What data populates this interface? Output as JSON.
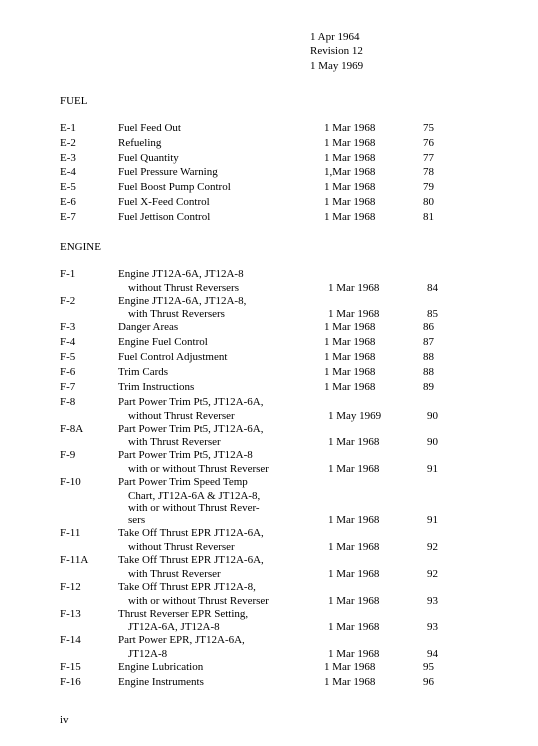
{
  "header": {
    "line1": "1 Apr 1964",
    "line2": "Revision 12",
    "line3": "1 May 1969"
  },
  "sections": [
    {
      "title": "FUEL",
      "rows": [
        {
          "code": "E-1",
          "title": "Fuel Feed Out",
          "date": "1 Mar 1968",
          "page": "75"
        },
        {
          "code": "E-2",
          "title": "Refueling",
          "date": "1 Mar 1968",
          "page": "76"
        },
        {
          "code": "E-3",
          "title": "Fuel Quantity",
          "date": "1 Mar 1968",
          "page": "77"
        },
        {
          "code": "E-4",
          "title": "Fuel Pressure Warning",
          "date": "1,Mar 1968",
          "page": "78"
        },
        {
          "code": "E-5",
          "title": "Fuel Boost Pump Control",
          "date": "1 Mar 1968",
          "page": "79"
        },
        {
          "code": "E-6",
          "title": "Fuel X-Feed Control",
          "date": "1 Mar 1968",
          "page": "80"
        },
        {
          "code": "E-7",
          "title": "Fuel Jettison Control",
          "date": "1 Mar 1968",
          "page": "81"
        }
      ]
    },
    {
      "title": "ENGINE",
      "rows": [
        {
          "code": "F-1",
          "title": "Engine JT12A-6A, JT12A-8",
          "date": "",
          "page": "",
          "cont": [
            {
              "t": "without Thrust Reversers",
              "d": "1 Mar 1968",
              "p": "84"
            }
          ]
        },
        {
          "code": "F-2",
          "title": "Engine JT12A-6A, JT12A-8,",
          "date": "",
          "page": "",
          "cont": [
            {
              "t": "with Thrust Reversers",
              "d": "1 Mar 1968",
              "p": "85"
            }
          ]
        },
        {
          "code": "F-3",
          "title": "Danger Areas",
          "date": "1 Mar 1968",
          "page": "86"
        },
        {
          "code": "F-4",
          "title": "Engine Fuel Control",
          "date": "1 Mar 1968",
          "page": "87"
        },
        {
          "code": "F-5",
          "title": "Fuel Control Adjustment",
          "date": "1 Mar 1968",
          "page": "88"
        },
        {
          "code": "F-6",
          "title": "Trim Cards",
          "date": "1 Mar 1968",
          "page": "88"
        },
        {
          "code": "F-7",
          "title": "Trim Instructions",
          "date": "1 Mar 1968",
          "page": "89"
        },
        {
          "code": "F-8",
          "title": "Part Power Trim Pt5, JT12A-6A,",
          "date": "",
          "page": "",
          "cont": [
            {
              "t": "without Thrust Reverser",
              "d": "1 May 1969",
              "p": "90"
            }
          ]
        },
        {
          "code": "F-8A",
          "title": "Part Power Trim Pt5, JT12A-6A,",
          "date": "",
          "page": "",
          "cont": [
            {
              "t": "with Thrust Reverser",
              "d": "1 Mar 1968",
              "p": "90"
            }
          ]
        },
        {
          "code": "F-9",
          "title": "Part Power Trim Pt5, JT12A-8",
          "date": "",
          "page": "",
          "cont": [
            {
              "t": "with or without Thrust Reverser",
              "d": "1 Mar 1968",
              "p": "91"
            }
          ]
        },
        {
          "code": "F-10",
          "title": "Part Power Trim Speed Temp",
          "date": "",
          "page": "",
          "cont": [
            {
              "t": "Chart, JT12A-6A & JT12A-8,",
              "d": "",
              "p": ""
            },
            {
              "t": "with or without Thrust Rever-",
              "d": "",
              "p": ""
            },
            {
              "t": "sers",
              "d": "1 Mar 1968",
              "p": "91"
            }
          ]
        },
        {
          "code": "F-11",
          "title": "Take Off Thrust EPR JT12A-6A,",
          "date": "",
          "page": "",
          "cont": [
            {
              "t": "without Thrust Reverser",
              "d": "1 Mar 1968",
              "p": "92"
            }
          ]
        },
        {
          "code": "F-11A",
          "title": "Take Off Thrust EPR JT12A-6A,",
          "date": "",
          "page": "",
          "cont": [
            {
              "t": "with Thrust Reverser",
              "d": "1 Mar 1968",
              "p": "92"
            }
          ]
        },
        {
          "code": "F-12",
          "title": "Take Off Thrust EPR JT12A-8,",
          "date": "",
          "page": "",
          "cont": [
            {
              "t": "with or without Thrust Reverser",
              "d": "1 Mar 1968",
              "p": "93"
            }
          ]
        },
        {
          "code": "F-13",
          "title": "Thrust Reverser EPR Setting,",
          "date": "",
          "page": "",
          "cont": [
            {
              "t": "JT12A-6A, JT12A-8",
              "d": "1 Mar 1968",
              "p": "93"
            }
          ]
        },
        {
          "code": "F-14",
          "title": "Part Power EPR, JT12A-6A,",
          "date": "",
          "page": "",
          "cont": [
            {
              "t": "JT12A-8",
              "d": "1 Mar 1968",
              "p": "94"
            }
          ]
        },
        {
          "code": "F-15",
          "title": "Engine Lubrication",
          "date": "1 Mar 1968",
          "page": "95"
        },
        {
          "code": "F-16",
          "title": "Engine Instruments",
          "date": "1 Mar 1968",
          "page": "96"
        }
      ]
    }
  ],
  "page_number": "iv"
}
